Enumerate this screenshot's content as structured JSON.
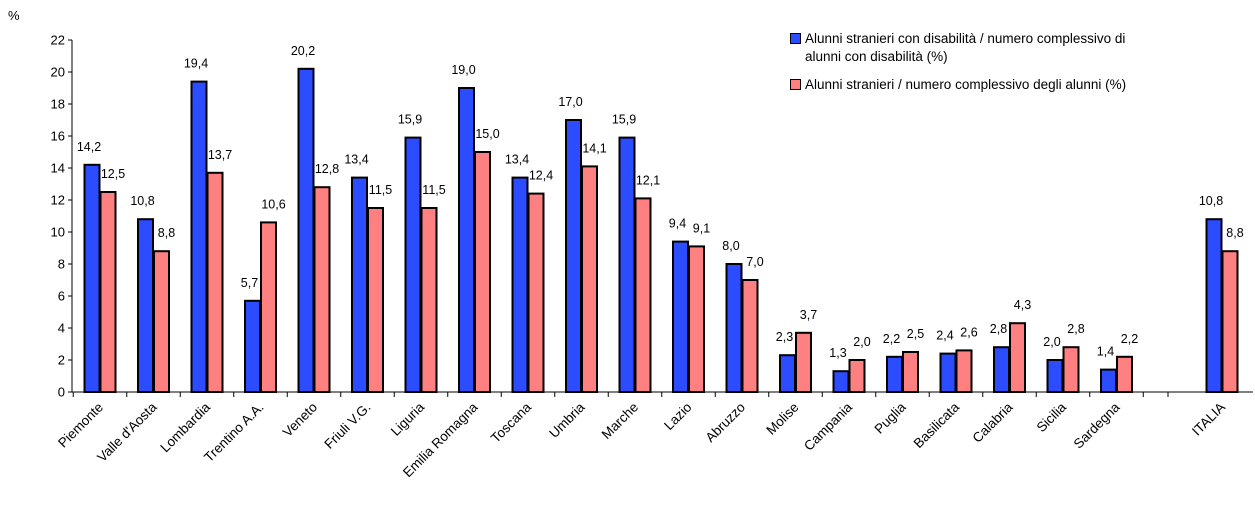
{
  "chart_data": {
    "type": "bar",
    "y_unit": "%",
    "ylim": [
      0,
      22
    ],
    "y_ticks": [
      "0",
      "2",
      "4",
      "6",
      "8",
      "10",
      "12",
      "14",
      "16",
      "18",
      "20",
      "22"
    ],
    "grid": false,
    "legend_position": "top-right",
    "categories": [
      "Piemonte",
      "Valle d'Aosta",
      "Lombardia",
      "Trentino A.A.",
      "Veneto",
      "Friuli V.G.",
      "Liguria",
      "Emilia Romagna",
      "Toscana",
      "Umbria",
      "Marche",
      "Lazio",
      "Abruzzo",
      "Molise",
      "Campania",
      "Puglia",
      "Basilicata",
      "Calabria",
      "Sicilia",
      "Sardegna",
      "ITALIA"
    ],
    "series": [
      {
        "name": "Alunni stranieri con disabilità / numero complessivo di alunni con disabilità (%)",
        "name_lines": [
          "Alunni stranieri con disabilità / numero complessivo di",
          "alunni con disabilità (%)"
        ],
        "color": "#2b4cff",
        "values": [
          14.2,
          10.8,
          19.4,
          5.7,
          20.2,
          13.4,
          15.9,
          19.0,
          13.4,
          17.0,
          15.9,
          9.4,
          8.0,
          2.3,
          1.3,
          2.2,
          2.4,
          2.8,
          2.0,
          1.4,
          10.8
        ],
        "labels": [
          "14,2",
          "10,8",
          "19,4",
          "5,7",
          "20,2",
          "13,4",
          "15,9",
          "19,0",
          "13,4",
          "17,0",
          "15,9",
          "9,4",
          "8,0",
          "2,3",
          "1,3",
          "2,2",
          "2,4",
          "2,8",
          "2,0",
          "1,4",
          "10,8"
        ]
      },
      {
        "name": "Alunni stranieri / numero complessivo degli alunni (%)",
        "name_lines": [
          "Alunni stranieri / numero complessivo degli alunni (%)"
        ],
        "color": "#ff8080",
        "values": [
          12.5,
          8.8,
          13.7,
          10.6,
          12.8,
          11.5,
          11.5,
          15.0,
          12.4,
          14.1,
          12.1,
          9.1,
          7.0,
          3.7,
          2.0,
          2.5,
          2.6,
          4.3,
          2.8,
          2.2,
          8.8
        ],
        "labels": [
          "12,5",
          "8,8",
          "13,7",
          "10,6",
          "12,8",
          "11,5",
          "11,5",
          "15,0",
          "12,4",
          "14,1",
          "12,1",
          "9,1",
          "7,0",
          "3,7",
          "2,0",
          "2,5",
          "2,6",
          "4,3",
          "2,8",
          "2,2",
          "8,8"
        ]
      }
    ]
  }
}
